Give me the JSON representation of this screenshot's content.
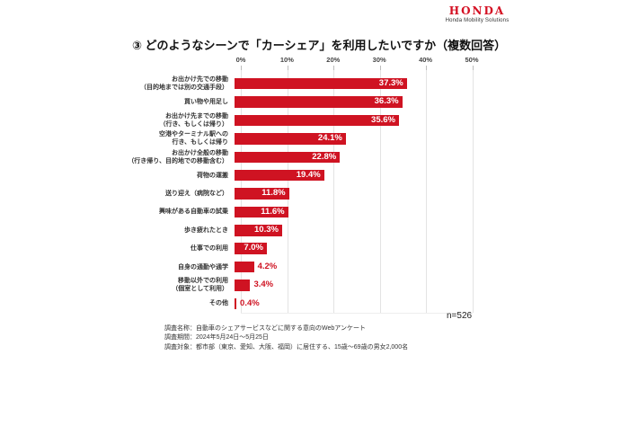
{
  "logo": {
    "brand": "HONDA",
    "subtitle": "Honda Mobility Solutions"
  },
  "title": "③ どのようなシーンで「カーシェア」を利用したいですか（複数回答）",
  "sample_size": "n=526",
  "footer_lines": [
    "調査名称：自動車のシェアサービスなどに関する意向のWebアンケート",
    "調査期間：2024年5月24日～5月25日",
    "調査対象：都市部（東京、愛知、大阪、福岡）に居住する、15歳～69歳の男女2,000名"
  ],
  "colors": {
    "bar_red": "#cf1322",
    "logo_red": "#d40f22",
    "grid_line": "#e3e3e3",
    "value_inside_text": "#ffffff",
    "value_outside_text": "#cf1322"
  },
  "chart_data": {
    "type": "bar",
    "orientation": "horizontal",
    "title": "③ どのようなシーンで「カーシェア」を利用したいですか（複数回答）",
    "xlim": [
      0,
      50
    ],
    "x_ticks": [
      "0%",
      "10%",
      "20%",
      "30%",
      "40%",
      "50%"
    ],
    "grid": true,
    "legend": null,
    "sample_note": "n=526",
    "categories": [
      "お出かけ先での移動（目的地までは別の交通手段）",
      "買い物や用足し",
      "お出かけ先までの移動（行き、もしくは帰り）",
      "空港やターミナル駅への行き、もしくは帰り",
      "お出かけ全般の移動（行き帰り、目的地での移動含む）",
      "荷物の運搬",
      "送り迎え（病院など）",
      "興味がある自動車の試乗",
      "歩き疲れたとき",
      "仕事での利用",
      "自身の通勤や通学",
      "移動以外での利用（個室として利用）",
      "その他"
    ],
    "category_label_lines": [
      [
        "お出かけ先での移動",
        "（目的地までは別の交通手段）"
      ],
      [
        "買い物や用足し"
      ],
      [
        "お出かけ先までの移動",
        "（行き、もしくは帰り）"
      ],
      [
        "空港やターミナル駅への",
        "行き、もしくは帰り"
      ],
      [
        "お出かけ全般の移動",
        "（行き帰り、目的地での移動含む）"
      ],
      [
        "荷物の運搬"
      ],
      [
        "送り迎え（病院など）"
      ],
      [
        "興味がある自動車の試乗"
      ],
      [
        "歩き疲れたとき"
      ],
      [
        "仕事での利用"
      ],
      [
        "自身の通勤や通学"
      ],
      [
        "移動以外での利用",
        "（個室として利用）"
      ],
      [
        "その他"
      ]
    ],
    "values": [
      37.3,
      36.3,
      35.6,
      24.1,
      22.8,
      19.4,
      11.8,
      11.6,
      10.3,
      7.0,
      4.2,
      3.4,
      0.4
    ],
    "value_labels": [
      "37.3%",
      "36.3%",
      "35.6%",
      "24.1%",
      "22.8%",
      "19.4%",
      "11.8%",
      "11.6%",
      "10.3%",
      "7.0%",
      "4.2%",
      "3.4%",
      "0.4%"
    ],
    "value_label_placement": [
      "inside",
      "inside",
      "inside",
      "inside",
      "inside",
      "inside",
      "inside",
      "inside",
      "inside",
      "inside",
      "outside",
      "outside",
      "outside"
    ]
  }
}
